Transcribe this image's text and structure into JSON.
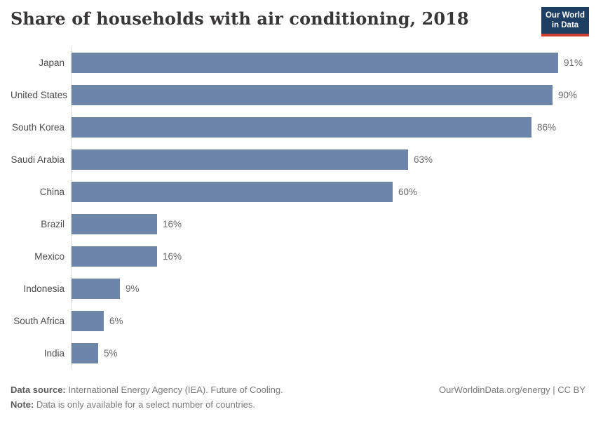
{
  "header": {
    "title": "Share of households with air conditioning, 2018",
    "logo": {
      "line1": "Our World",
      "line2": "in Data"
    }
  },
  "chart_data": {
    "type": "bar",
    "orientation": "horizontal",
    "title": "Share of households with air conditioning, 2018",
    "categories": [
      "Japan",
      "United States",
      "South Korea",
      "Saudi Arabia",
      "China",
      "Brazil",
      "Mexico",
      "Indonesia",
      "South Africa",
      "India"
    ],
    "values": [
      91,
      90,
      86,
      63,
      60,
      16,
      16,
      9,
      6,
      5
    ],
    "value_labels": [
      "91%",
      "90%",
      "86%",
      "63%",
      "60%",
      "16%",
      "16%",
      "9%",
      "6%",
      "5%"
    ],
    "unit": "%",
    "xlabel": "",
    "ylabel": "",
    "xlim": [
      0,
      100
    ],
    "grid": false,
    "legend": "none",
    "bar_color": "#6e85aa"
  },
  "footer": {
    "source_label": "Data source:",
    "source_text": " International Energy Agency (IEA). Future of Cooling.",
    "note_label": "Note:",
    "note_text": " Data is only available for a select number of countries.",
    "credit": "OurWorldinData.org/energy | CC BY"
  },
  "colors": {
    "bar": "#6e85aa",
    "axis_line": "#dcdcdc",
    "logo_bg": "#1d3d63",
    "logo_stripe": "#cf3b2c",
    "title_text": "#383636",
    "label_text": "#4c4c4c",
    "value_text": "#6a6a6a",
    "footer_text": "#7a7a7a"
  }
}
